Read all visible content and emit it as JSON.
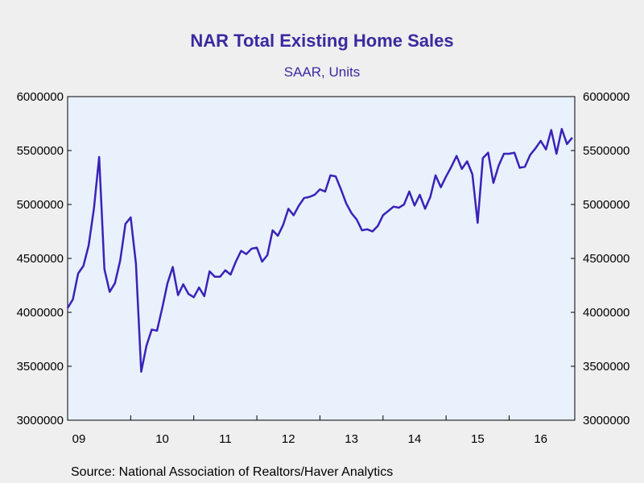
{
  "chart_data": {
    "type": "line",
    "title": "NAR Total Existing Home Sales",
    "subtitle": "SAAR, Units",
    "source": "Source:  National Association of Realtors/Haver Analytics",
    "ylim": [
      3000000,
      6000000
    ],
    "yticks": [
      3000000,
      3500000,
      4000000,
      4500000,
      5000000,
      5500000,
      6000000
    ],
    "ytick_labels": [
      "3000000",
      "3500000",
      "4000000",
      "4500000",
      "5000000",
      "5500000",
      "6000000"
    ],
    "xlim": [
      2009.0,
      2017.04
    ],
    "xticks": [
      {
        "label": "09",
        "year": 2009
      },
      {
        "label": "10",
        "year": 2010
      },
      {
        "label": "11",
        "year": 2011
      },
      {
        "label": "12",
        "year": 2012
      },
      {
        "label": "13",
        "year": 2013
      },
      {
        "label": "14",
        "year": 2014
      },
      {
        "label": "15",
        "year": 2015
      },
      {
        "label": "16",
        "year": 2016
      }
    ],
    "grid": false,
    "line_color": "#3a22b8",
    "plot_background": "#e8f1fc",
    "series": [
      {
        "start": "2009-01",
        "values": [
          4040000,
          4120000,
          4360000,
          4430000,
          4620000,
          4960000,
          5440000,
          4400000,
          4190000,
          4270000,
          4480000,
          4820000,
          4880000,
          4450000,
          3450000,
          3690000,
          3840000,
          3830000,
          4040000,
          4270000,
          4420000,
          4160000,
          4260000,
          4170000,
          4140000,
          4230000,
          4150000,
          4380000,
          4330000,
          4330000,
          4390000,
          4350000,
          4470000,
          4570000,
          4540000,
          4590000,
          4600000,
          4470000,
          4530000,
          4760000,
          4710000,
          4810000,
          4960000,
          4900000,
          4990000,
          5060000,
          5070000,
          5090000,
          5140000,
          5120000,
          5270000,
          5260000,
          5140000,
          5010000,
          4920000,
          4860000,
          4760000,
          4770000,
          4750000,
          4800000,
          4900000,
          4940000,
          4980000,
          4970000,
          5000000,
          5120000,
          4990000,
          5090000,
          4960000,
          5070000,
          5270000,
          5160000,
          5260000,
          5350000,
          5450000,
          5330000,
          5400000,
          5280000,
          4830000,
          5430000,
          5480000,
          5200000,
          5360000,
          5470000,
          5470000,
          5480000,
          5340000,
          5350000,
          5460000,
          5520000,
          5590000,
          5510000,
          5690000,
          5470000,
          5700000,
          5560000,
          5620000
        ]
      }
    ]
  }
}
